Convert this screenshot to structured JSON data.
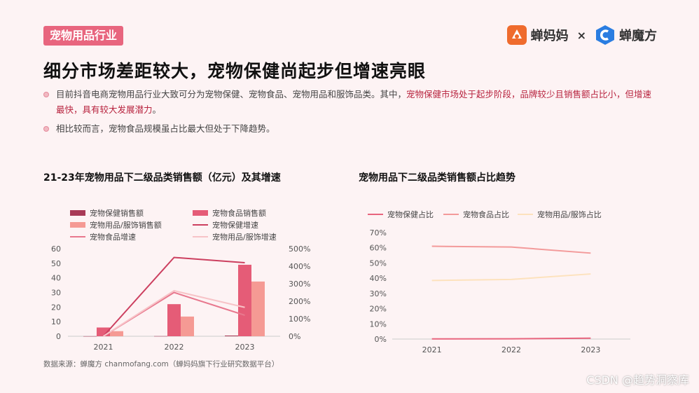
{
  "tag": "宠物用品行业",
  "logos": {
    "left_name": "蝉妈妈",
    "separator": "×",
    "right_name": "蝉魔方"
  },
  "headline": "细分市场差距较大，宠物保健尚起步但增速亮眼",
  "bullets": {
    "b1_part1": "目前抖音电商宠物用品行业大致可分为宠物保健、宠物食品、宠物用品和服饰品类。其中，",
    "b1_highlight": "宠物保健市场处于起步阶段，品牌较少且销售额占比小，但增速最快，具有较大发展潜力",
    "b1_end": "。",
    "b2": "相比较而言，宠物食品规模虽占比最大但处于下降趋势。"
  },
  "source": "数据来源：蝉魔方  chanmofang.com（蝉妈妈旗下行业研究数据平台）",
  "watermark": "CSDN @趋势洞察库",
  "colors": {
    "health": "#a83a57",
    "food": "#e55c77",
    "supplies": "#f59a94",
    "health_growth": "#cc3f5f",
    "food_growth": "#e8788e",
    "supplies_growth": "#f7c3c7",
    "share_health": "#e8657e",
    "share_food": "#f39a9a",
    "share_supplies": "#fde2bd"
  },
  "chart_data": [
    {
      "type": "bar",
      "title": "21-23年宠物用品下二级品类销售额（亿元）及其增速",
      "categories": [
        "2021",
        "2022",
        "2023"
      ],
      "ylim": [
        0,
        60
      ],
      "yticks": [
        "0",
        "10",
        "20",
        "30",
        "40",
        "50",
        "60"
      ],
      "y2lim": [
        0,
        500
      ],
      "y2ticks": [
        "0%",
        "100%",
        "200%",
        "300%",
        "400%",
        "500%"
      ],
      "legend": {
        "health_sales": "宠物保健销售额",
        "food_sales": "宠物食品销售额",
        "supplies_sales": "宠物用品/服饰销售额",
        "health_growth": "宠物保健增速",
        "food_growth": "宠物食品增速",
        "supplies_growth": "宠物用品/服饰增速"
      },
      "series": [
        {
          "name": "宠物保健销售额",
          "values": [
            0.05,
            0.1,
            0.5
          ]
        },
        {
          "name": "宠物食品销售额",
          "values": [
            6,
            22,
            49
          ]
        },
        {
          "name": "宠物用品/服饰销售额",
          "values": [
            3.5,
            13.5,
            37.5
          ]
        }
      ],
      "growth_series": [
        {
          "name": "宠物保健增速",
          "values": [
            0,
            450,
            420
          ]
        },
        {
          "name": "宠物食品增速",
          "values": [
            0,
            250,
            120
          ]
        },
        {
          "name": "宠物用品/服饰增速",
          "values": [
            0,
            260,
            165
          ]
        }
      ]
    },
    {
      "type": "line",
      "title": "宠物用品下二级品类销售额占比趋势",
      "categories": [
        "2021",
        "2022",
        "2023"
      ],
      "ylim": [
        0,
        70
      ],
      "yticks": [
        "0%",
        "10%",
        "20%",
        "30%",
        "40%",
        "50%",
        "60%",
        "70%"
      ],
      "legend": {
        "health": "宠物保健占比",
        "food": "宠物食品占比",
        "supplies": "宠物用品/服饰占比"
      },
      "series": [
        {
          "name": "宠物保健占比",
          "values": [
            0.1,
            0.2,
            0.6
          ]
        },
        {
          "name": "宠物食品占比",
          "values": [
            61,
            60.5,
            56.5
          ]
        },
        {
          "name": "宠物用品/服饰占比",
          "values": [
            38.5,
            39.2,
            42.8
          ]
        }
      ]
    }
  ]
}
